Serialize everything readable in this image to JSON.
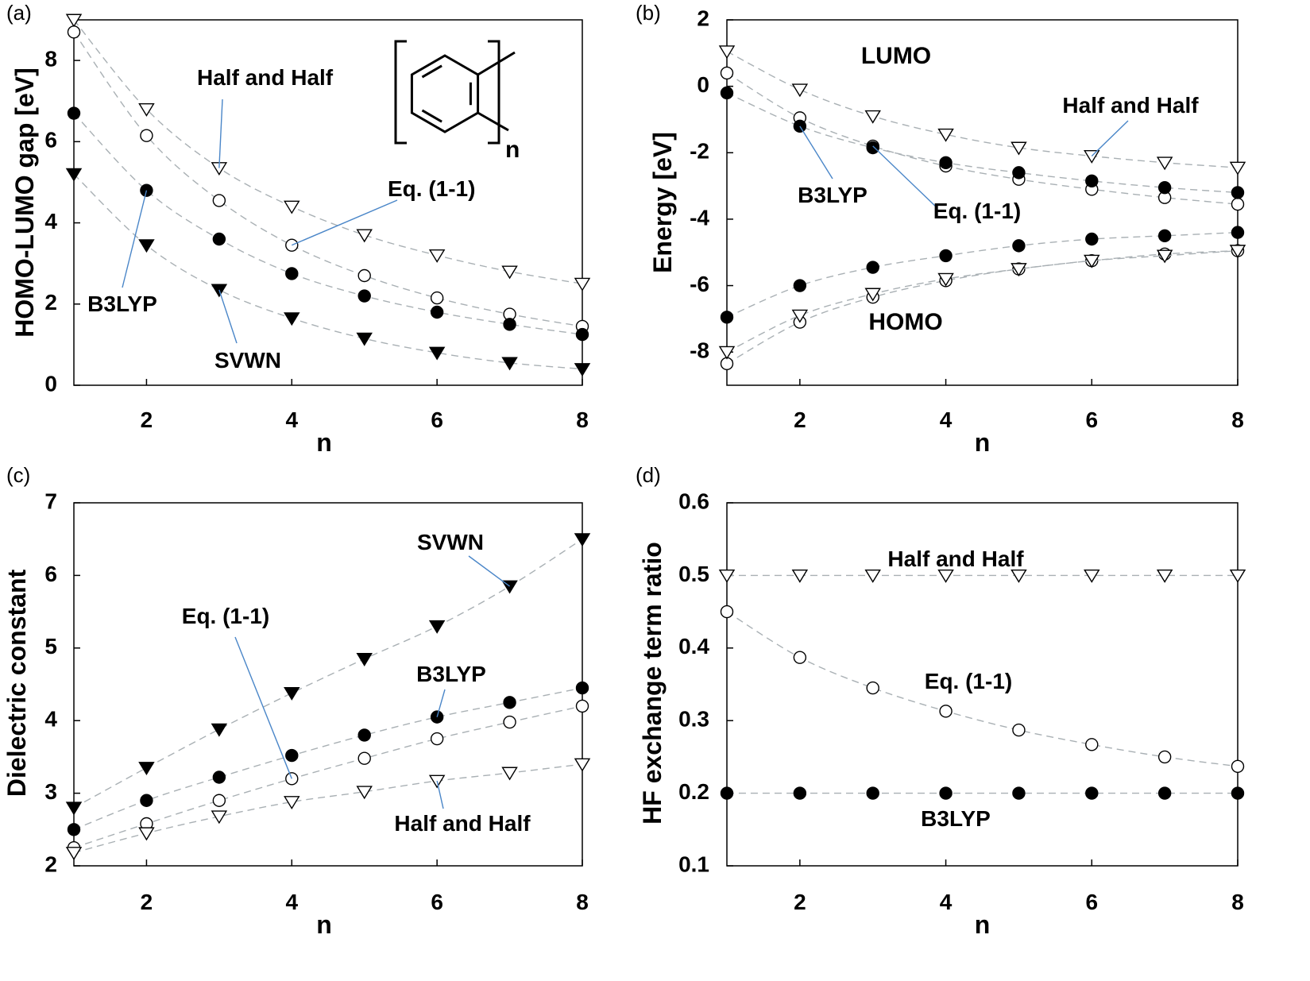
{
  "chart_data": [
    {
      "panel": "(a)",
      "type": "scatter",
      "xlabel": "n",
      "ylabel": "HOMO-LUMO gap [eV]",
      "xlim": [
        1,
        8
      ],
      "ylim": [
        0,
        9
      ],
      "xticks": [
        "2",
        "4",
        "6",
        "8"
      ],
      "yticks": [
        "0",
        "2",
        "4",
        "6",
        "8"
      ],
      "inset": "n",
      "series": [
        {
          "name": "Half and Half",
          "marker": "triangle-down-open",
          "x": [
            1,
            2,
            3,
            4,
            5,
            6,
            7,
            8
          ],
          "values": [
            9.0,
            6.8,
            5.35,
            4.4,
            3.7,
            3.2,
            2.8,
            2.5
          ]
        },
        {
          "name": "Eq. (1-1)",
          "marker": "circle-open",
          "x": [
            1,
            2,
            3,
            4,
            5,
            6,
            7,
            8
          ],
          "values": [
            8.7,
            6.15,
            4.55,
            3.45,
            2.7,
            2.15,
            1.75,
            1.45
          ]
        },
        {
          "name": "B3LYP",
          "marker": "circle-filled",
          "x": [
            1,
            2,
            3,
            4,
            5,
            6,
            7,
            8
          ],
          "values": [
            6.7,
            4.8,
            3.6,
            2.75,
            2.2,
            1.8,
            1.5,
            1.25
          ]
        },
        {
          "name": "SVWN",
          "marker": "triangle-down-filled",
          "x": [
            1,
            2,
            3,
            4,
            5,
            6,
            7,
            8
          ],
          "values": [
            5.2,
            3.45,
            2.35,
            1.65,
            1.15,
            0.8,
            0.55,
            0.4
          ]
        }
      ],
      "annotations": [
        {
          "text": "Half and Half",
          "series": "Half and Half",
          "point": 2
        },
        {
          "text": "Eq. (1-1)",
          "series": "Eq. (1-1)",
          "point": 3
        },
        {
          "text": "B3LYP",
          "series": "B3LYP",
          "point": 1
        },
        {
          "text": "SVWN",
          "series": "SVWN",
          "point": 2
        }
      ]
    },
    {
      "panel": "(b)",
      "type": "scatter",
      "xlabel": "n",
      "ylabel": "Energy [eV]",
      "xlim": [
        1,
        8
      ],
      "ylim": [
        -9,
        2
      ],
      "xticks": [
        "2",
        "4",
        "6",
        "8"
      ],
      "yticks": [
        "2",
        "0",
        "-2",
        "-4",
        "-6",
        "-8"
      ],
      "region_labels": [
        "LUMO",
        "HOMO"
      ],
      "series": [
        {
          "name": "Half and Half LUMO",
          "marker": "triangle-down-open",
          "x": [
            1,
            2,
            3,
            4,
            5,
            6,
            7,
            8
          ],
          "values": [
            1.05,
            -0.1,
            -0.9,
            -1.45,
            -1.85,
            -2.1,
            -2.3,
            -2.45
          ]
        },
        {
          "name": "Eq. (1-1) LUMO",
          "marker": "circle-open",
          "x": [
            1,
            2,
            3,
            4,
            5,
            6,
            7,
            8
          ],
          "values": [
            0.4,
            -0.95,
            -1.8,
            -2.4,
            -2.8,
            -3.1,
            -3.35,
            -3.55
          ]
        },
        {
          "name": "B3LYP LUMO",
          "marker": "circle-filled",
          "x": [
            1,
            2,
            3,
            4,
            5,
            6,
            7,
            8
          ],
          "values": [
            -0.2,
            -1.2,
            -1.85,
            -2.3,
            -2.6,
            -2.85,
            -3.05,
            -3.2
          ]
        },
        {
          "name": "B3LYP HOMO",
          "marker": "circle-filled",
          "x": [
            1,
            2,
            3,
            4,
            5,
            6,
            7,
            8
          ],
          "values": [
            -6.95,
            -6.0,
            -5.45,
            -5.1,
            -4.8,
            -4.6,
            -4.5,
            -4.4
          ]
        },
        {
          "name": "Eq. (1-1) HOMO",
          "marker": "circle-open",
          "x": [
            1,
            2,
            3,
            4,
            5,
            6,
            7,
            8
          ],
          "values": [
            -8.35,
            -7.1,
            -6.35,
            -5.85,
            -5.5,
            -5.25,
            -5.05,
            -4.95
          ]
        },
        {
          "name": "Half and Half HOMO",
          "marker": "triangle-down-open",
          "x": [
            1,
            2,
            3,
            4,
            5,
            6,
            7,
            8
          ],
          "values": [
            -8.0,
            -6.9,
            -6.25,
            -5.8,
            -5.5,
            -5.25,
            -5.1,
            -4.95
          ]
        }
      ],
      "annotations": [
        {
          "text": "Half and Half",
          "series": "Half and Half LUMO",
          "point": 5
        },
        {
          "text": "B3LYP",
          "series": "B3LYP LUMO",
          "point": 1
        },
        {
          "text": "Eq. (1-1)",
          "series": "Eq. (1-1) LUMO",
          "point": 2
        }
      ]
    },
    {
      "panel": "(c)",
      "type": "scatter",
      "xlabel": "n",
      "ylabel": "Dielectric constant",
      "xlim": [
        1,
        8
      ],
      "ylim": [
        2,
        7
      ],
      "xticks": [
        "2",
        "4",
        "6",
        "8"
      ],
      "yticks": [
        "2",
        "3",
        "4",
        "5",
        "6",
        "7"
      ],
      "series": [
        {
          "name": "SVWN",
          "marker": "triangle-down-filled",
          "x": [
            1,
            2,
            3,
            4,
            5,
            6,
            7,
            8
          ],
          "values": [
            2.8,
            3.35,
            3.88,
            4.38,
            4.85,
            5.3,
            5.85,
            6.5
          ]
        },
        {
          "name": "B3LYP",
          "marker": "circle-filled",
          "x": [
            1,
            2,
            3,
            4,
            5,
            6,
            7,
            8
          ],
          "values": [
            2.5,
            2.9,
            3.22,
            3.52,
            3.8,
            4.05,
            4.25,
            4.45
          ]
        },
        {
          "name": "Eq. (1-1)",
          "marker": "circle-open",
          "x": [
            1,
            2,
            3,
            4,
            5,
            6,
            7,
            8
          ],
          "values": [
            2.25,
            2.58,
            2.9,
            3.2,
            3.48,
            3.75,
            3.98,
            4.2
          ]
        },
        {
          "name": "Half and Half",
          "marker": "triangle-down-open",
          "x": [
            1,
            2,
            3,
            4,
            5,
            6,
            7,
            8
          ],
          "values": [
            2.18,
            2.45,
            2.68,
            2.88,
            3.02,
            3.17,
            3.28,
            3.4
          ]
        }
      ],
      "annotations": [
        {
          "text": "SVWN",
          "series": "SVWN",
          "point": 6
        },
        {
          "text": "Eq. (1-1)",
          "series": "Eq. (1-1)",
          "point": 3
        },
        {
          "text": "B3LYP",
          "series": "B3LYP",
          "point": 5
        },
        {
          "text": "Half and Half",
          "series": "Half and Half",
          "point": 5
        }
      ]
    },
    {
      "panel": "(d)",
      "type": "scatter",
      "xlabel": "n",
      "ylabel": "HF exchange term ratio",
      "xlim": [
        1,
        8
      ],
      "ylim": [
        0.1,
        0.6
      ],
      "xticks": [
        "2",
        "4",
        "6",
        "8"
      ],
      "yticks": [
        "0.1",
        "0.2",
        "0.3",
        "0.4",
        "0.5",
        "0.6"
      ],
      "series": [
        {
          "name": "Half and Half",
          "marker": "triangle-down-open",
          "x": [
            1,
            2,
            3,
            4,
            5,
            6,
            7,
            8
          ],
          "values": [
            0.5,
            0.5,
            0.5,
            0.5,
            0.5,
            0.5,
            0.5,
            0.5
          ]
        },
        {
          "name": "Eq. (1-1)",
          "marker": "circle-open",
          "x": [
            1,
            2,
            3,
            4,
            5,
            6,
            7,
            8
          ],
          "values": [
            0.45,
            0.387,
            0.345,
            0.313,
            0.287,
            0.267,
            0.25,
            0.237
          ]
        },
        {
          "name": "B3LYP",
          "marker": "circle-filled",
          "x": [
            1,
            2,
            3,
            4,
            5,
            6,
            7,
            8
          ],
          "values": [
            0.2,
            0.2,
            0.2,
            0.2,
            0.2,
            0.2,
            0.2,
            0.2
          ]
        }
      ],
      "annotations": [
        {
          "text": "Half and Half"
        },
        {
          "text": "Eq. (1-1)"
        },
        {
          "text": "B3LYP"
        }
      ]
    }
  ]
}
